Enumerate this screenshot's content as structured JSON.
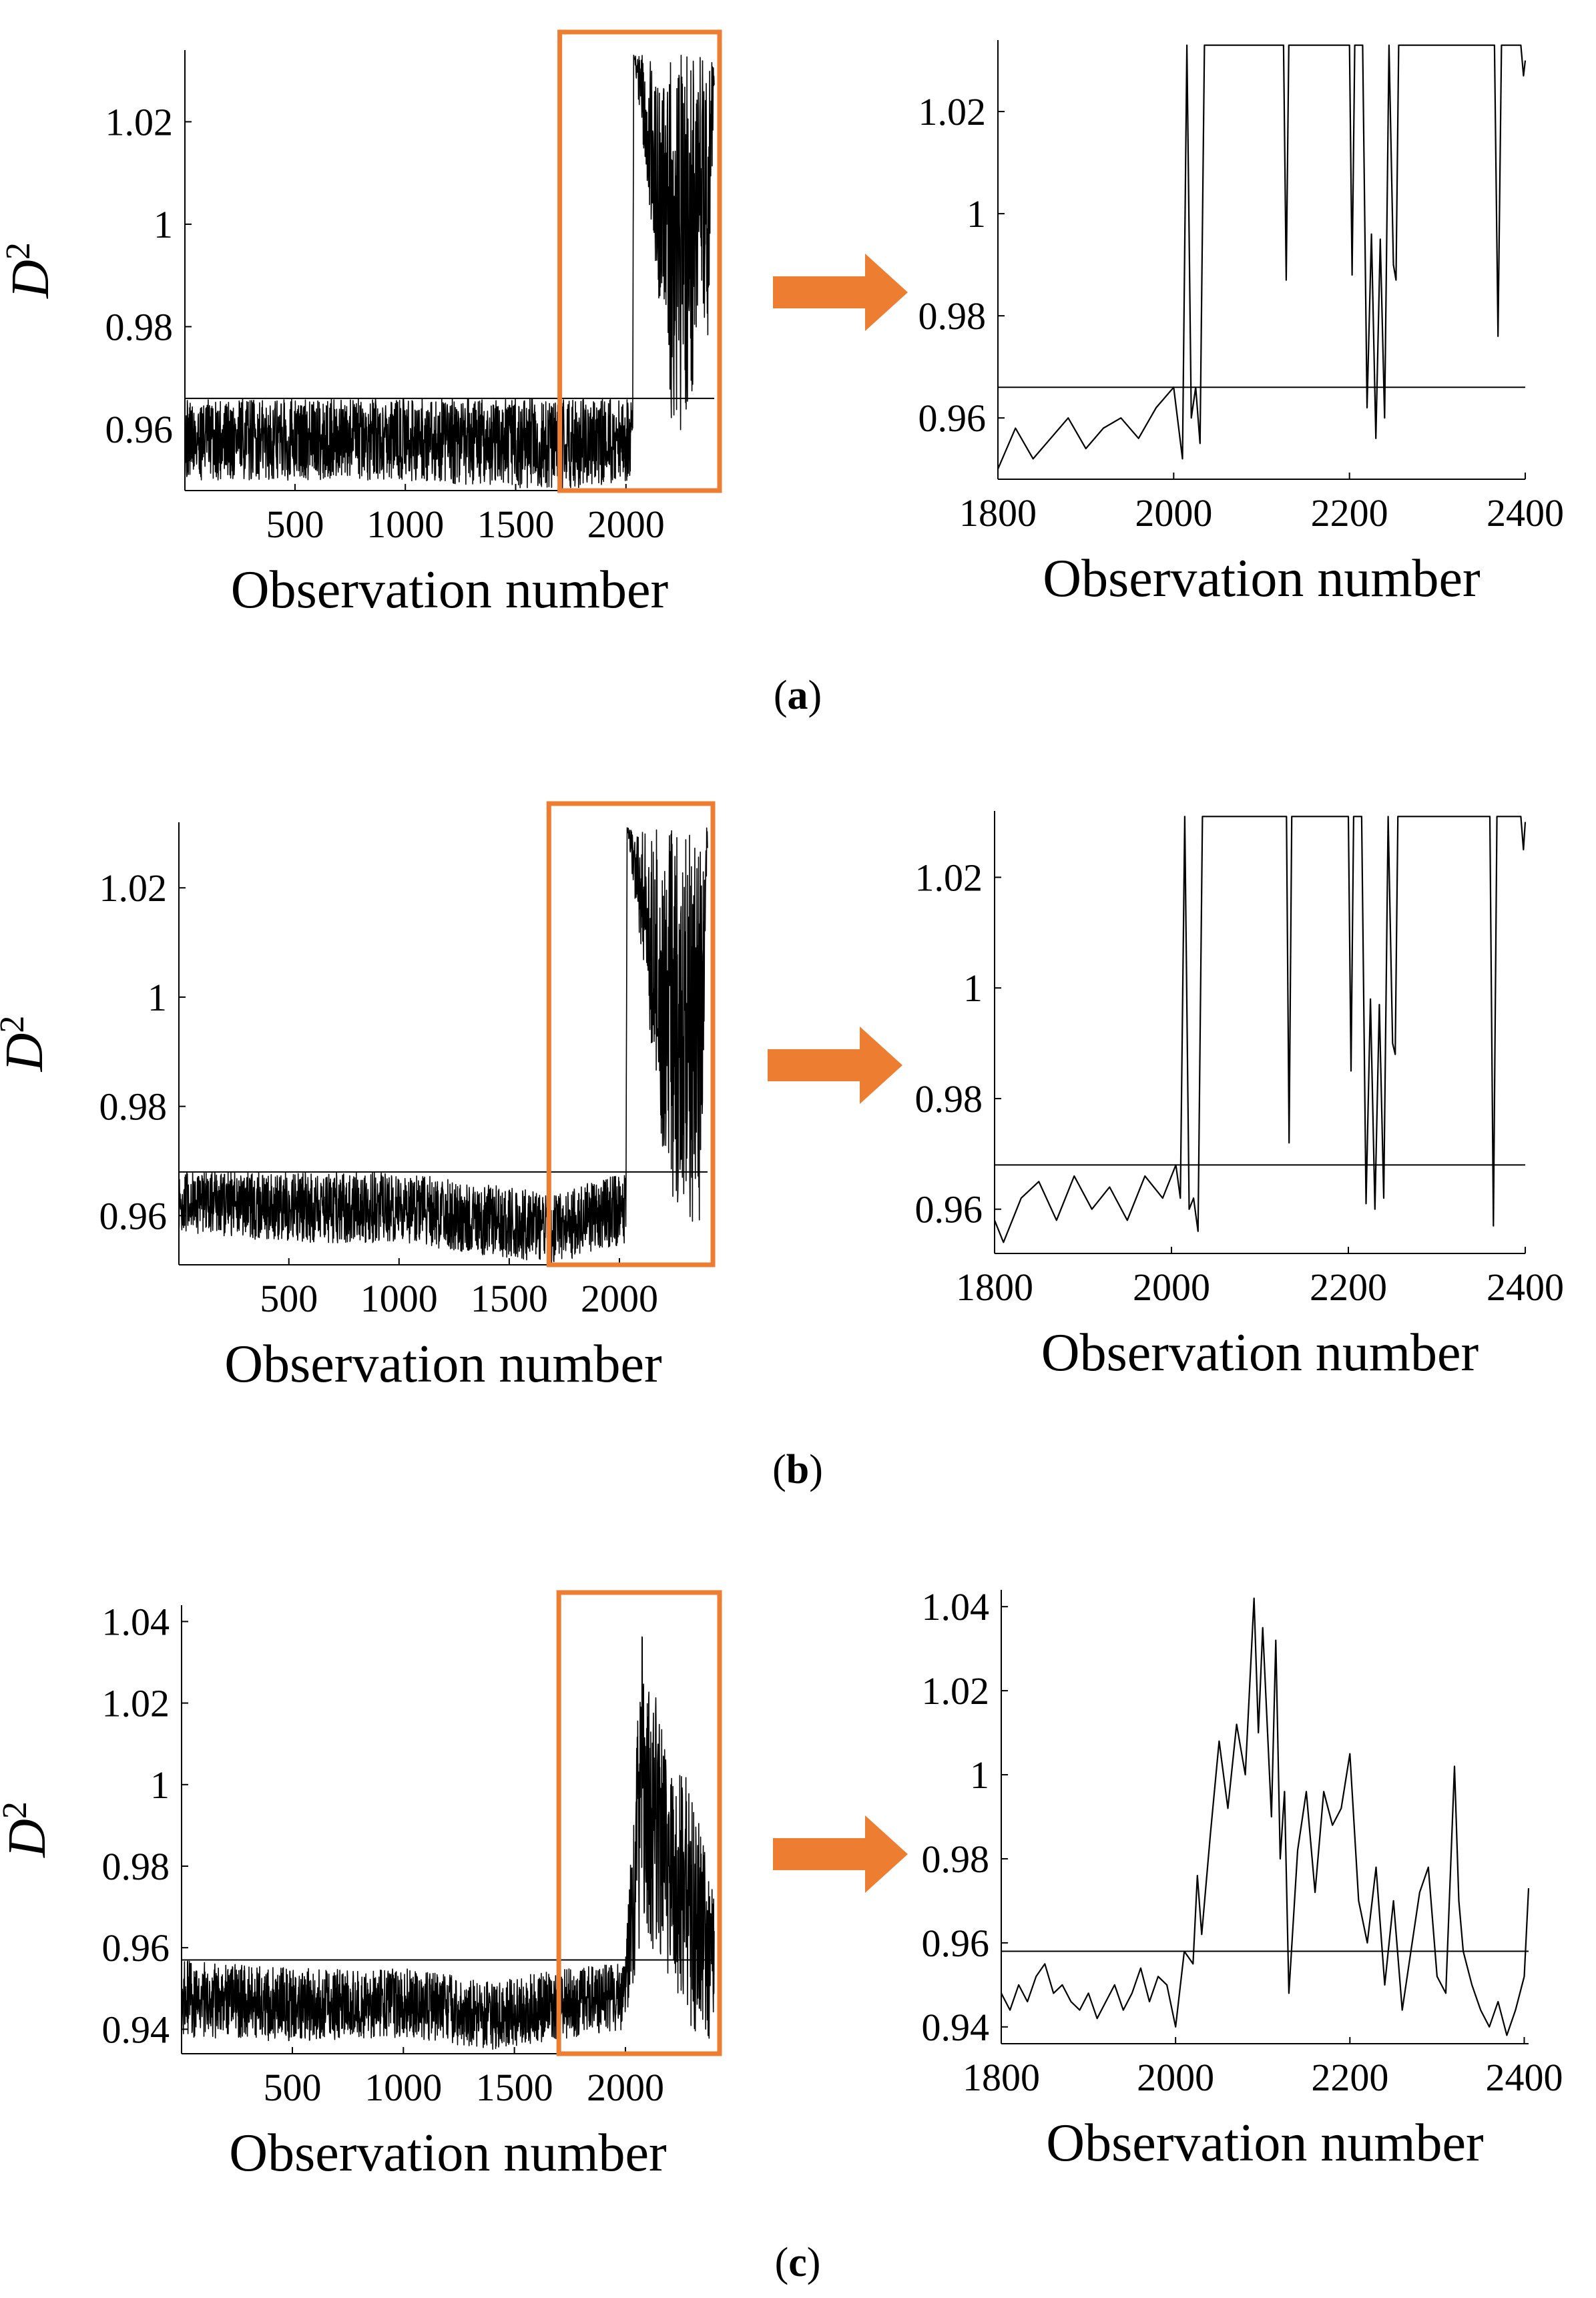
{
  "figure": {
    "captions": [
      "(a)",
      "(b)",
      "(c)"
    ],
    "caption_letters": [
      "a",
      "b",
      "c"
    ],
    "zoom_color": "#ED7D31",
    "line_color": "#000000"
  },
  "chart_data": [
    {
      "panel": "a",
      "view": "overview",
      "type": "line",
      "xlabel": "Observation number",
      "ylabel": "D",
      "ylabel_superscript": "2",
      "xlim": [
        1,
        2400
      ],
      "ylim": [
        0.948,
        1.034
      ],
      "xticks": [
        500,
        1000,
        1500,
        2000
      ],
      "xtick_labels": [
        "500",
        "1000",
        "1500",
        "2000"
      ],
      "yticks": [
        0.96,
        0.98,
        1.0,
        1.02
      ],
      "ytick_labels": [
        "0.96",
        "0.98",
        "1",
        "1.02"
      ],
      "threshold": 0.966,
      "zoom_box": {
        "x": [
          1700,
          2400
        ]
      },
      "series_profile": [
        {
          "x": 1,
          "y_low": 0.95,
          "y_high": 0.966
        },
        {
          "x": 500,
          "y_low": 0.95,
          "y_high": 0.966
        },
        {
          "x": 1000,
          "y_low": 0.95,
          "y_high": 0.966
        },
        {
          "x": 1700,
          "y_low": 0.948,
          "y_high": 0.966
        },
        {
          "x": 2030,
          "y_low": 0.95,
          "y_high": 0.966
        },
        {
          "x": 2035,
          "y_low": 1.033,
          "y_high": 1.033
        },
        {
          "x": 2220,
          "y_low": 0.956,
          "y_high": 1.033
        },
        {
          "x": 2370,
          "y_low": 0.976,
          "y_high": 1.033
        },
        {
          "x": 2400,
          "y_low": 1.027,
          "y_high": 1.033
        }
      ]
    },
    {
      "panel": "a",
      "view": "zoom",
      "type": "line",
      "xlabel": "Observation number",
      "xlim": [
        1800,
        2400
      ],
      "ylim": [
        0.948,
        1.034
      ],
      "xticks": [
        1800,
        2000,
        2200,
        2400
      ],
      "xtick_labels": [
        "1800",
        "2000",
        "2200",
        "2400"
      ],
      "yticks": [
        0.96,
        0.98,
        1.0,
        1.02
      ],
      "ytick_labels": [
        "0.96",
        "0.98",
        "1",
        "1.02"
      ],
      "threshold": 0.966,
      "x": [
        1800,
        1820,
        1840,
        1860,
        1880,
        1900,
        1920,
        1940,
        1960,
        1980,
        2000,
        2010,
        2015,
        2020,
        2025,
        2030,
        2035,
        2040,
        2125,
        2128,
        2131,
        2200,
        2203,
        2206,
        2215,
        2220,
        2225,
        2230,
        2235,
        2240,
        2245,
        2250,
        2253,
        2256,
        2365,
        2369,
        2373,
        2395,
        2398,
        2400
      ],
      "y": [
        0.95,
        0.958,
        0.952,
        0.956,
        0.96,
        0.954,
        0.958,
        0.96,
        0.956,
        0.962,
        0.966,
        0.952,
        1.033,
        0.96,
        0.966,
        0.955,
        1.033,
        1.033,
        1.033,
        0.987,
        1.033,
        1.033,
        0.988,
        1.033,
        1.033,
        0.962,
        0.996,
        0.956,
        0.995,
        0.96,
        1.033,
        0.99,
        0.987,
        1.033,
        1.033,
        0.976,
        1.033,
        1.033,
        1.027,
        1.03
      ]
    },
    {
      "panel": "b",
      "view": "overview",
      "type": "line",
      "xlabel": "Observation number",
      "ylabel": "D",
      "ylabel_superscript": "2",
      "xlim": [
        1,
        2400
      ],
      "ylim": [
        0.951,
        1.032
      ],
      "xticks": [
        500,
        1000,
        1500,
        2000
      ],
      "xtick_labels": [
        "500",
        "1000",
        "1500",
        "2000"
      ],
      "yticks": [
        0.96,
        0.98,
        1.0,
        1.02
      ],
      "ytick_labels": [
        "0.96",
        "0.98",
        "1",
        "1.02"
      ],
      "threshold": 0.968,
      "zoom_box": {
        "x": [
          1680,
          2400
        ]
      },
      "series_profile": [
        {
          "x": 1,
          "y_low": 0.957,
          "y_high": 0.968
        },
        {
          "x": 500,
          "y_low": 0.955,
          "y_high": 0.968
        },
        {
          "x": 1000,
          "y_low": 0.955,
          "y_high": 0.968
        },
        {
          "x": 1700,
          "y_low": 0.951,
          "y_high": 0.964
        },
        {
          "x": 2030,
          "y_low": 0.955,
          "y_high": 0.968
        },
        {
          "x": 2035,
          "y_low": 1.031,
          "y_high": 1.031
        },
        {
          "x": 2220,
          "y_low": 0.962,
          "y_high": 1.031
        },
        {
          "x": 2365,
          "y_low": 0.958,
          "y_high": 1.031
        },
        {
          "x": 2400,
          "y_low": 1.025,
          "y_high": 1.031
        }
      ]
    },
    {
      "panel": "b",
      "view": "zoom",
      "type": "line",
      "xlabel": "Observation number",
      "xlim": [
        1800,
        2400
      ],
      "ylim": [
        0.952,
        1.032
      ],
      "xticks": [
        1800,
        2000,
        2200,
        2400
      ],
      "xtick_labels": [
        "1800",
        "2000",
        "2200",
        "2400"
      ],
      "yticks": [
        0.96,
        0.98,
        1.0,
        1.02
      ],
      "ytick_labels": [
        "0.96",
        "0.98",
        "1",
        "1.02"
      ],
      "threshold": 0.968,
      "x": [
        1800,
        1810,
        1830,
        1850,
        1870,
        1890,
        1910,
        1930,
        1950,
        1970,
        1990,
        2005,
        2010,
        2015,
        2020,
        2025,
        2030,
        2035,
        2040,
        2130,
        2133,
        2136,
        2200,
        2203,
        2206,
        2215,
        2220,
        2225,
        2230,
        2235,
        2240,
        2245,
        2250,
        2253,
        2256,
        2360,
        2364,
        2368,
        2395,
        2398,
        2400
      ],
      "y": [
        0.958,
        0.954,
        0.962,
        0.965,
        0.958,
        0.966,
        0.96,
        0.964,
        0.958,
        0.966,
        0.962,
        0.968,
        0.962,
        1.031,
        0.96,
        0.962,
        0.956,
        1.031,
        1.031,
        1.031,
        0.972,
        1.031,
        1.031,
        0.985,
        1.031,
        1.031,
        0.961,
        0.998,
        0.96,
        0.997,
        0.962,
        1.031,
        0.99,
        0.988,
        1.031,
        1.031,
        0.957,
        1.031,
        1.031,
        1.025,
        1.03
      ]
    },
    {
      "panel": "c",
      "view": "overview",
      "type": "line",
      "xlabel": "Observation number",
      "ylabel": "D",
      "ylabel_superscript": "2",
      "xlim": [
        1,
        2400
      ],
      "ylim": [
        0.934,
        1.044
      ],
      "xticks": [
        500,
        1000,
        1500,
        2000
      ],
      "xtick_labels": [
        "500",
        "1000",
        "1500",
        "2000"
      ],
      "yticks": [
        0.94,
        0.96,
        0.98,
        1.0,
        1.02,
        1.04
      ],
      "ytick_labels": [
        "0.94",
        "0.96",
        "0.98",
        "1",
        "1.02",
        "1.04"
      ],
      "threshold": 0.957,
      "zoom_box": {
        "x": [
          1700,
          2400
        ]
      },
      "series_profile": [
        {
          "x": 1,
          "y_low": 0.938,
          "y_high": 0.957
        },
        {
          "x": 500,
          "y_low": 0.937,
          "y_high": 0.955
        },
        {
          "x": 1000,
          "y_low": 0.938,
          "y_high": 0.955
        },
        {
          "x": 1400,
          "y_low": 0.935,
          "y_high": 0.952
        },
        {
          "x": 2000,
          "y_low": 0.94,
          "y_high": 0.957
        },
        {
          "x": 2080,
          "y_low": 0.965,
          "y_high": 1.042
        },
        {
          "x": 2200,
          "y_low": 0.95,
          "y_high": 1.005
        },
        {
          "x": 2300,
          "y_low": 0.94,
          "y_high": 1.002
        },
        {
          "x": 2400,
          "y_low": 0.937,
          "y_high": 0.973
        }
      ]
    },
    {
      "panel": "c",
      "view": "zoom",
      "type": "line",
      "xlabel": "Observation number",
      "xlim": [
        1800,
        2405
      ],
      "ylim": [
        0.936,
        1.044
      ],
      "xticks": [
        1800,
        2000,
        2200,
        2400
      ],
      "xtick_labels": [
        "1800",
        "2000",
        "2200",
        "2400"
      ],
      "yticks": [
        0.94,
        0.96,
        0.98,
        1.0,
        1.02,
        1.04
      ],
      "ytick_labels": [
        "0.94",
        "0.96",
        "0.98",
        "1",
        "1.02",
        "1.04"
      ],
      "threshold": 0.958,
      "x": [
        1800,
        1810,
        1820,
        1830,
        1840,
        1850,
        1860,
        1870,
        1880,
        1890,
        1900,
        1910,
        1920,
        1930,
        1940,
        1950,
        1960,
        1970,
        1980,
        1990,
        2000,
        2010,
        2020,
        2025,
        2030,
        2040,
        2050,
        2060,
        2070,
        2080,
        2090,
        2095,
        2100,
        2110,
        2115,
        2120,
        2125,
        2130,
        2140,
        2150,
        2160,
        2170,
        2180,
        2190,
        2200,
        2210,
        2220,
        2230,
        2240,
        2250,
        2260,
        2270,
        2280,
        2290,
        2300,
        2310,
        2320,
        2325,
        2330,
        2340,
        2350,
        2360,
        2370,
        2380,
        2390,
        2400,
        2405
      ],
      "y": [
        0.948,
        0.944,
        0.95,
        0.946,
        0.952,
        0.955,
        0.948,
        0.95,
        0.946,
        0.944,
        0.948,
        0.942,
        0.946,
        0.95,
        0.944,
        0.948,
        0.954,
        0.946,
        0.952,
        0.95,
        0.94,
        0.958,
        0.955,
        0.976,
        0.962,
        0.986,
        1.008,
        0.992,
        1.012,
        1.0,
        1.042,
        1.01,
        1.035,
        0.99,
        1.032,
        0.98,
        0.996,
        0.948,
        0.982,
        0.996,
        0.972,
        0.996,
        0.988,
        0.992,
        1.005,
        0.97,
        0.96,
        0.978,
        0.95,
        0.97,
        0.944,
        0.958,
        0.972,
        0.978,
        0.952,
        0.948,
        1.002,
        0.97,
        0.958,
        0.95,
        0.944,
        0.94,
        0.946,
        0.938,
        0.944,
        0.952,
        0.973
      ]
    }
  ]
}
